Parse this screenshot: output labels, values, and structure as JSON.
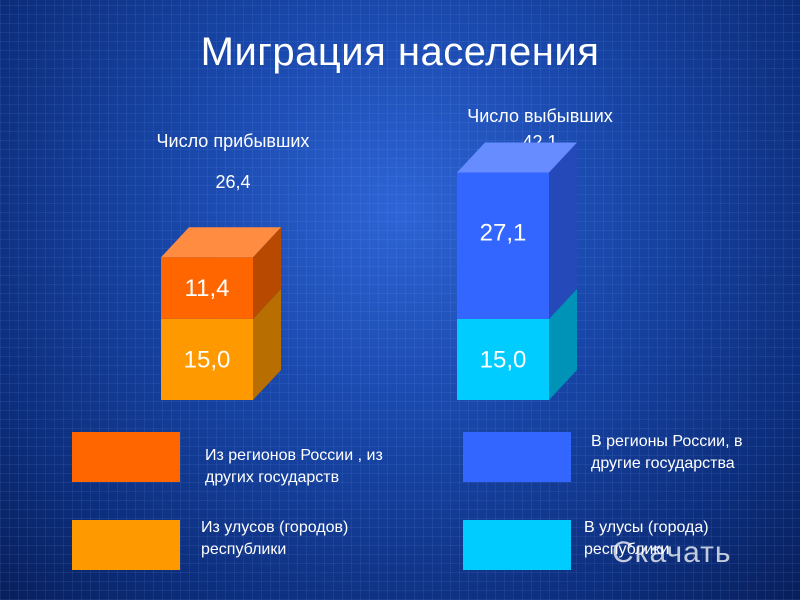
{
  "title": "Миграция населения",
  "chart_data": {
    "type": "bar",
    "stacked": true,
    "three_d": true,
    "categories": [
      "Число прибывших",
      "Число выбывших"
    ],
    "totals": [
      "26,4",
      "42,1"
    ],
    "total_values": [
      26.4,
      42.1
    ],
    "series": [
      {
        "name": "Из улусов (городов) республики / В улусы (города) республики",
        "values": [
          15.0,
          15.0
        ],
        "labels": [
          "15,0",
          "15,0"
        ],
        "colors": [
          "#ff9900",
          "#00ccff"
        ]
      },
      {
        "name": "Из регионов России , из других государств / В регионы России, в другие государства",
        "values": [
          11.4,
          27.1
        ],
        "labels": [
          "11,4",
          "27,1"
        ],
        "colors": [
          "#ff6600",
          "#3366ff"
        ]
      }
    ]
  },
  "legend": [
    {
      "text": "Из регионов России , из\nдругих государств",
      "color": "#ff6600"
    },
    {
      "text": "В регионы России, в\nдругие государства",
      "color": "#3366ff"
    },
    {
      "text": "Из улусов (городов)\nреспублики",
      "color": "#ff9900"
    },
    {
      "text": "В улусы (города)\nреспублики",
      "color": "#00ccff"
    }
  ],
  "watermark": "Скачать"
}
